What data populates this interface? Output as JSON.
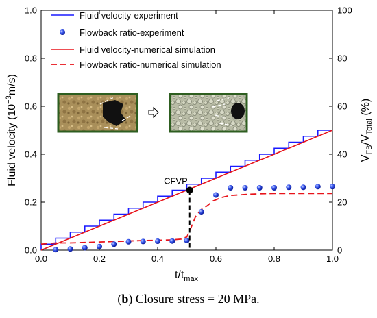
{
  "chart_data": {
    "type": "line",
    "xlabel": {
      "main": "t/t",
      "sub": "max"
    },
    "ylabel": {
      "pre": "Fluid velocity (10",
      "sup": "−3",
      "post": "m/s)"
    },
    "y2label": {
      "a": "V",
      "a_sub": "FB",
      "mid": "/V",
      "b_sub": "Total",
      "post": " (%)"
    },
    "xlim": [
      0.0,
      1.0
    ],
    "ylim": [
      0.0,
      1.0
    ],
    "y2lim": [
      0,
      100
    ],
    "xticks": [
      "0.0",
      "0.2",
      "0.4",
      "0.6",
      "0.8",
      "1.0"
    ],
    "yticks": [
      "0.0",
      "0.2",
      "0.4",
      "0.6",
      "0.8",
      "1.0"
    ],
    "y2ticks": [
      "0",
      "20",
      "40",
      "60",
      "80",
      "100"
    ],
    "legend_position": "top-left",
    "grid": false,
    "series": [
      {
        "name": "Fluid velocity-experiment",
        "axis": "left",
        "style": "step",
        "color": "#1a1aff",
        "x": [
          0.0,
          0.05,
          0.1,
          0.15,
          0.2,
          0.25,
          0.3,
          0.35,
          0.4,
          0.45,
          0.5,
          0.55,
          0.6,
          0.65,
          0.7,
          0.75,
          0.8,
          0.85,
          0.9,
          0.95,
          1.0
        ],
        "y": [
          0.025,
          0.05,
          0.075,
          0.1,
          0.125,
          0.15,
          0.175,
          0.2,
          0.225,
          0.25,
          0.275,
          0.3,
          0.325,
          0.35,
          0.375,
          0.4,
          0.425,
          0.45,
          0.475,
          0.5,
          0.5
        ]
      },
      {
        "name": "Flowback ratio-experiment",
        "axis": "right",
        "style": "scatter",
        "color": "#1f3fd6",
        "x": [
          0.05,
          0.1,
          0.15,
          0.2,
          0.25,
          0.3,
          0.35,
          0.4,
          0.45,
          0.5,
          0.55,
          0.6,
          0.65,
          0.7,
          0.75,
          0.8,
          0.85,
          0.9,
          0.95,
          1.0
        ],
        "y": [
          0.2,
          0.5,
          1.0,
          1.5,
          2.5,
          3.5,
          3.6,
          3.7,
          3.8,
          4.0,
          16.0,
          23.0,
          26.0,
          26.0,
          26.0,
          26.0,
          26.2,
          26.2,
          26.5,
          26.5
        ]
      },
      {
        "name": "Fluid velocity-numerical simulation",
        "axis": "left",
        "style": "solid",
        "color": "#e8131a",
        "x": [
          0.0,
          1.0
        ],
        "y": [
          0.0,
          0.5
        ]
      },
      {
        "name": "Flowback ratio-numerical simulation",
        "axis": "right",
        "style": "dashed",
        "color": "#e8131a",
        "x": [
          0.0,
          0.05,
          0.1,
          0.15,
          0.2,
          0.25,
          0.3,
          0.35,
          0.4,
          0.45,
          0.48,
          0.5,
          0.51,
          0.53,
          0.55,
          0.57,
          0.59,
          0.62,
          0.65,
          0.7,
          0.75,
          0.8,
          0.9,
          1.0
        ],
        "y": [
          2.5,
          3.0,
          3.0,
          3.2,
          3.4,
          3.6,
          3.8,
          4.0,
          4.1,
          4.3,
          4.6,
          5.5,
          8.0,
          14.0,
          17.0,
          18.5,
          20.5,
          22.0,
          22.8,
          23.2,
          23.5,
          23.6,
          23.6,
          23.6
        ]
      }
    ],
    "annotation": {
      "label": "CFVP",
      "x": 0.51,
      "y": 0.25
    }
  },
  "caption": {
    "bold": "b",
    "text": " Closure stress = 20 MPa."
  }
}
